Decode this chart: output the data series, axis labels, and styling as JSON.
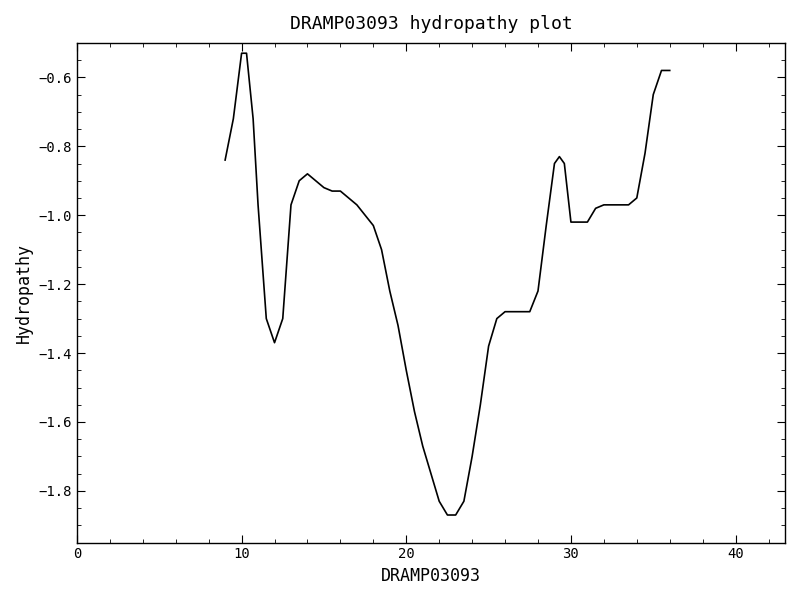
{
  "title": "DRAMP03093 hydropathy plot",
  "xlabel": "DRAMP03093",
  "ylabel": "Hydropathy",
  "xlim": [
    0,
    43
  ],
  "ylim": [
    -1.95,
    -0.5
  ],
  "xticks": [
    0,
    10,
    20,
    30,
    40
  ],
  "yticks": [
    -1.8,
    -1.6,
    -1.4,
    -1.2,
    -1.0,
    -0.8,
    -0.6
  ],
  "line_color": "#000000",
  "bg_color": "#ffffff",
  "x": [
    9.0,
    9.5,
    10.0,
    10.3,
    10.7,
    11.0,
    11.5,
    12.0,
    12.5,
    13.0,
    13.5,
    14.0,
    14.5,
    15.0,
    15.5,
    16.0,
    16.5,
    17.0,
    17.5,
    18.0,
    18.5,
    19.0,
    19.5,
    20.0,
    20.5,
    21.0,
    21.5,
    22.0,
    22.5,
    23.0,
    23.5,
    24.0,
    24.5,
    25.0,
    25.5,
    26.0,
    26.5,
    27.0,
    27.5,
    28.0,
    28.5,
    29.0,
    29.3,
    29.6,
    30.0,
    30.5,
    31.0,
    31.5,
    32.0,
    32.5,
    33.0,
    33.5,
    34.0,
    34.5,
    35.0,
    35.5,
    36.0
  ],
  "y": [
    -0.84,
    -0.72,
    -0.53,
    -0.53,
    -0.72,
    -0.97,
    -1.3,
    -1.37,
    -1.3,
    -0.97,
    -0.9,
    -0.88,
    -0.9,
    -0.92,
    -0.93,
    -0.93,
    -0.95,
    -0.97,
    -1.0,
    -1.03,
    -1.1,
    -1.22,
    -1.32,
    -1.45,
    -1.57,
    -1.67,
    -1.75,
    -1.83,
    -1.87,
    -1.87,
    -1.83,
    -1.7,
    -1.55,
    -1.38,
    -1.3,
    -1.28,
    -1.28,
    -1.28,
    -1.28,
    -1.22,
    -1.03,
    -0.85,
    -0.83,
    -0.85,
    -1.02,
    -1.02,
    -1.02,
    -0.98,
    -0.97,
    -0.97,
    -0.97,
    -0.97,
    -0.95,
    -0.82,
    -0.65,
    -0.58,
    -0.58
  ]
}
